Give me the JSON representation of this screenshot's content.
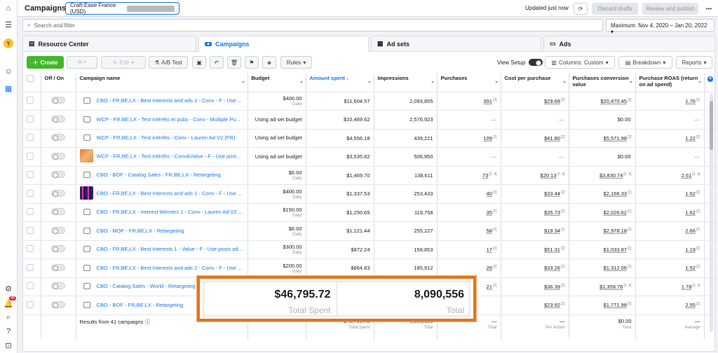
{
  "header": {
    "title": "Campaigns",
    "account": "Craft-Ease France (USD)",
    "updated": "Updated just now",
    "discard": "Discard drafts",
    "review": "Review and publish",
    "more": "•••"
  },
  "search": {
    "placeholder": "Search and filter",
    "daterange": "Maximum: Nov 4, 2020 – Jan 20, 2022"
  },
  "tabs": [
    {
      "label": "Resource Center",
      "icon": "document-icon"
    },
    {
      "label": "Campaigns",
      "icon": "folder-icon"
    },
    {
      "label": "Ad sets",
      "icon": "grid-icon"
    },
    {
      "label": "Ads",
      "icon": "ad-icon"
    }
  ],
  "toolbar": {
    "create": "Create",
    "edit": "Edit",
    "abtest": "A/B Test",
    "rules": "Rules",
    "view_setup": "View Setup",
    "columns": "Columns: Custom",
    "breakdown": "Breakdown",
    "reports": "Reports"
  },
  "columns": [
    "Off / On",
    "Campaign name",
    "Budget",
    "Amount spent ↓",
    "Impressions",
    "Purchases",
    "Cost per purchase",
    "Purchases conversion value",
    "Purchase ROAS (return on ad spend)"
  ],
  "rows": [
    {
      "thumb": "icon",
      "name": "CBO - FR,BE,LX - Best Interests and ads 1 - Conv - F - Use ...",
      "budget": "$400.00",
      "budget_sub": "Daily",
      "spent": "$11,604.57",
      "impr": "2,093,855",
      "purch": "391",
      "purch_sup": "[2]",
      "cpp": "$29.68",
      "cpp_sup": "[2]",
      "value": "$20,470.45",
      "value_sup": "[2]",
      "roas": "1.76",
      "roas_sup": "[2]"
    },
    {
      "thumb": "icon",
      "name": "WCP - FR,BE,LX - Test intérêts et pubs - Conv - Multiple Pu...",
      "budget": "Using ad set budget",
      "budget_sub": "",
      "spent": "$10,469.62",
      "impr": "2,576,923",
      "purch": "—",
      "purch_sup": "",
      "cpp": "—",
      "cpp_sup": "",
      "value": "$0.00",
      "value_sup": "",
      "roas": "—",
      "roas_sup": ""
    },
    {
      "thumb": "icon",
      "name": "WCP - FR,BE,LX - Test intérêts - Conv - Lauren Ad V2 (FR)",
      "budget": "Using ad set budget",
      "budget_sub": "",
      "spent": "$4,556.18",
      "impr": "439,221",
      "purch": "109",
      "purch_sup": "[2]",
      "cpp": "$41.80",
      "cpp_sup": "[2]",
      "value": "$5,571.98",
      "value_sup": "[2]",
      "roas": "1.22",
      "roas_sup": "[2]"
    },
    {
      "thumb": "orange",
      "name": "WCP - FR,BE,LX - Test intérêts - Conv&Value - F - Use post...",
      "budget": "Using ad set budget",
      "budget_sub": "",
      "spent": "$3,535.82",
      "impr": "506,950",
      "purch": "—",
      "purch_sup": "",
      "cpp": "—",
      "cpp_sup": "",
      "value": "$0.00",
      "value_sup": "",
      "roas": "—",
      "roas_sup": ""
    },
    {
      "thumb": "icon",
      "name": "CBO - BOF - Catalog Sales - FR,BE,LX - Retargeting",
      "budget": "$6.00",
      "budget_sub": "Daily",
      "spent": "$1,469.70",
      "impr": "138,611",
      "purch": "73",
      "purch_sup": "[2, 4]",
      "cpp": "$20.13",
      "cpp_sup": "[2, 4]",
      "value": "$3,830.74",
      "value_sup": "[2, 4]",
      "roas": "2.61",
      "roas_sup": "[2, 4]"
    },
    {
      "thumb": "purple",
      "name": "CBO - FR,BE,LX - Best Interests and ads 1 - Conv - F - Use ...",
      "budget": "$400.00",
      "budget_sub": "Daily",
      "spent": "$1,337.53",
      "impr": "253,433",
      "purch": "40",
      "purch_sup": "[2]",
      "cpp": "$33.44",
      "cpp_sup": "[2]",
      "value": "$2,166.33",
      "value_sup": "[2]",
      "roas": "1.62",
      "roas_sup": "[2]"
    },
    {
      "thumb": "icon",
      "name": "CBO - FR,BE,LX - Interest Winners 1 - Conv - Lauren Ad V2 ...",
      "budget": "$150.00",
      "budget_sub": "Daily",
      "spent": "$1,250.65",
      "impr": "119,758",
      "purch": "35",
      "purch_sup": "[2]",
      "cpp": "$35.73",
      "cpp_sup": "[2]",
      "value": "$2,026.62",
      "value_sup": "[2]",
      "roas": "1.62",
      "roas_sup": "[2]"
    },
    {
      "thumb": "icon",
      "name": "CBO - MOF - FR,BE,LX - Retargeting",
      "budget": "$6.00",
      "budget_sub": "Daily",
      "spent": "$1,121.44",
      "impr": "255,227",
      "purch": "58",
      "purch_sup": "[2]",
      "cpp": "$19.34",
      "cpp_sup": "[2]",
      "value": "$2,978.18",
      "value_sup": "[2]",
      "roas": "2.66",
      "roas_sup": "[2]"
    },
    {
      "thumb": "icon",
      "name": "CBO - FR,BE,LX - Best Interests 1 - Value - F - Use posts ad...",
      "budget": "$300.00",
      "budget_sub": "Daily",
      "spent": "$872.24",
      "impr": "158,853",
      "purch": "17",
      "purch_sup": "[2]",
      "cpp": "$51.31",
      "cpp_sup": "[2]",
      "value": "$1,033.87",
      "value_sup": "[2]",
      "roas": "1.19",
      "roas_sup": "[2]"
    },
    {
      "thumb": "icon",
      "name": "CBO - FR,BE,LX - Best Interests and ads 2 - Conv - F - Use ...",
      "budget": "$200.00",
      "budget_sub": "Daily",
      "spent": "$864.83",
      "impr": "185,912",
      "purch": "26",
      "purch_sup": "[2]",
      "cpp": "$33.26",
      "cpp_sup": "[2]",
      "value": "$1,312.06",
      "value_sup": "[2]",
      "roas": "1.52",
      "roas_sup": "[2]"
    },
    {
      "thumb": "icon",
      "name": "CBO - Catalog Sales - World - Retargeting",
      "budget": "",
      "budget_sub": "",
      "spent": "",
      "impr": "",
      "purch": "21",
      "purch_sup": "[2]",
      "cpp": "$36.39",
      "cpp_sup": "[2]",
      "value": "$1,359.76",
      "value_sup": "[2, 4]",
      "roas": "1.78",
      "roas_sup": "[2, 4]"
    },
    {
      "thumb": "icon",
      "name": "CBO - BOF - FR,BE,LX - Retargeting",
      "budget": "",
      "budget_sub": "",
      "spent": "",
      "impr": "",
      "purch": "",
      "purch_sup": "",
      "cpp": "$23.92",
      "cpp_sup": "[2]",
      "value": "$1,771.98",
      "value_sup": "[2]",
      "roas": "2.55",
      "roas_sup": "[2]"
    }
  ],
  "totals": {
    "label": "Results from 41 campaigns",
    "spent": "$46,795.72",
    "spent_sub": "Total Spent",
    "impr": "8,090,556",
    "impr_sub": "Total",
    "purch": "—",
    "purch_sub": "Total",
    "cpp": "—",
    "cpp_sub": "Per Action",
    "value": "$0.00",
    "value_sub": "Total",
    "roas": "—",
    "roas_sub": "Average"
  },
  "highlight": {
    "spent": "$46,795.72",
    "spent_label": "Total Spent",
    "impr": "8,090,556",
    "impr_label": "Total"
  },
  "colors": {
    "accent": "#1877f2",
    "create": "#42b72a",
    "highlight_border": "#e2761b"
  }
}
